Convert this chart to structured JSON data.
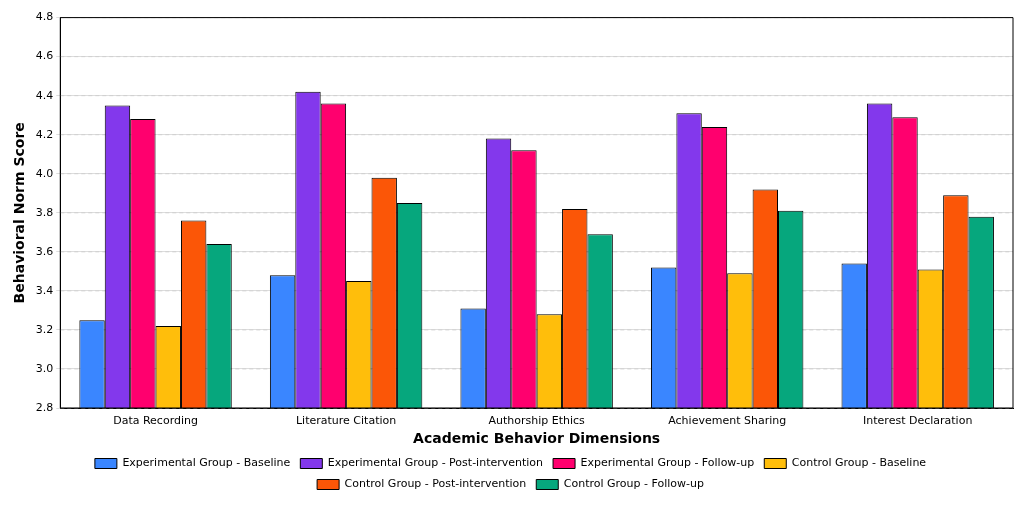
{
  "chart_data": {
    "type": "bar",
    "xlabel": "Academic Behavior Dimensions",
    "ylabel": "Behavioral Norm Score",
    "categories": [
      "Data Recording",
      "Literature Citation",
      "Authorship Ethics",
      "Achievement Sharing",
      "Interest Declaration"
    ],
    "series": [
      {
        "name": "Experimental Group - Baseline",
        "color": "#3a86ff",
        "values": [
          3.25,
          3.48,
          3.31,
          3.52,
          3.54
        ]
      },
      {
        "name": "Experimental Group - Post-intervention",
        "color": "#8338ec",
        "values": [
          4.35,
          4.42,
          4.18,
          4.31,
          4.36
        ]
      },
      {
        "name": "Experimental Group - Follow-up",
        "color": "#ff006e",
        "values": [
          4.28,
          4.36,
          4.12,
          4.24,
          4.29
        ]
      },
      {
        "name": "Control Group - Baseline",
        "color": "#ffbe0b",
        "values": [
          3.22,
          3.45,
          3.28,
          3.49,
          3.51
        ]
      },
      {
        "name": "Control Group - Post-intervention",
        "color": "#fb5607",
        "values": [
          3.76,
          3.98,
          3.82,
          3.92,
          3.89
        ]
      },
      {
        "name": "Control Group - Follow-up",
        "color": "#06a77d",
        "values": [
          3.64,
          3.85,
          3.69,
          3.81,
          3.78
        ]
      }
    ],
    "ylim": [
      2.8,
      4.8
    ],
    "yticks": [
      2.8,
      {
        "value": 3,
        "label": "3.0"
      },
      3.2,
      3.4,
      3.6,
      3.8,
      {
        "value": 4,
        "label": "4.0"
      },
      4.2,
      4.4,
      4.6,
      4.8
    ],
    "grid": "y",
    "legend": "bottom"
  }
}
